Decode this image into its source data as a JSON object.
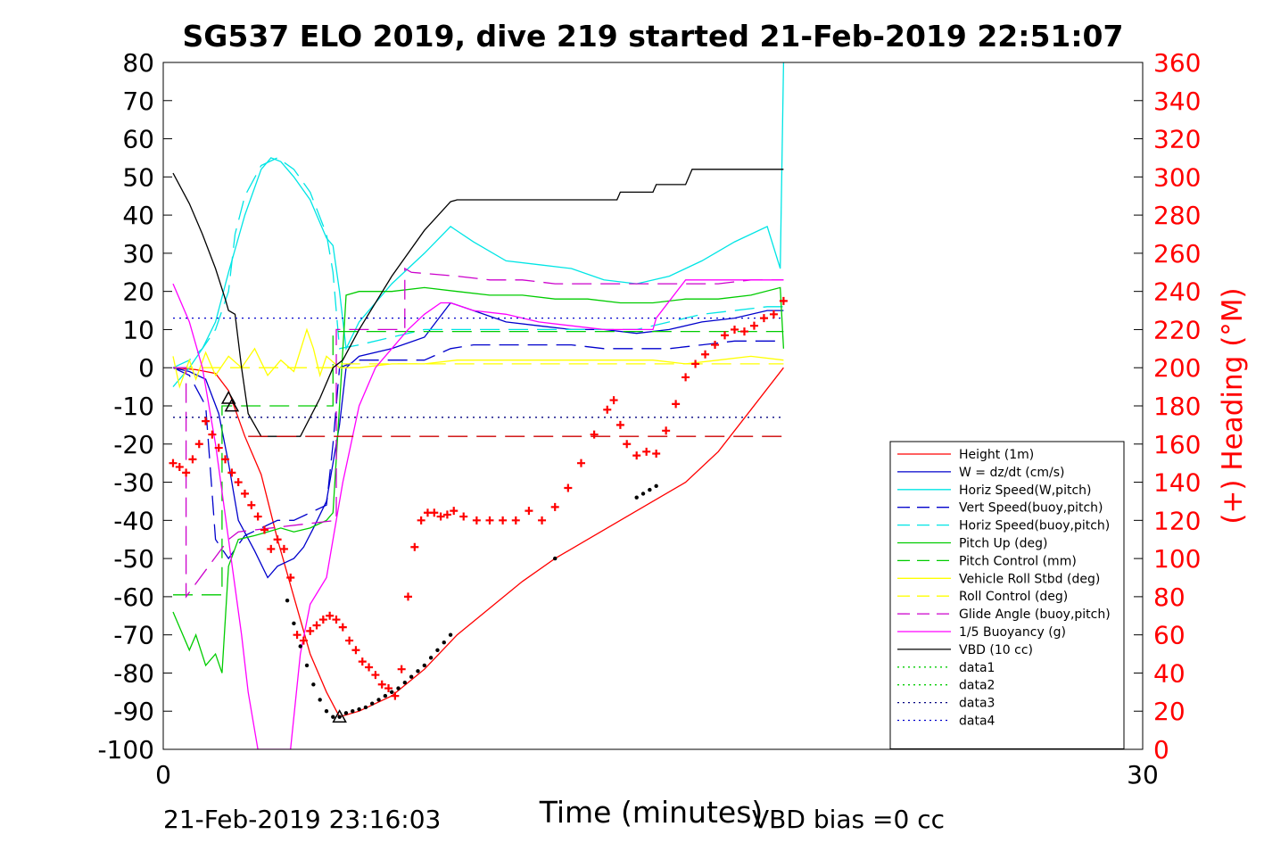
{
  "chart_data": {
    "type": "line",
    "title": "SG537 ELO 2019, dive 219 started 21-Feb-2019 22:51:07",
    "xlabel": "Time (minutes)",
    "ylabel": "",
    "y2label": "(+) Heading (°M)",
    "footer_left": "21-Feb-2019 23:16:03",
    "footer_right": "VBD bias =0 cc",
    "xlim": [
      0,
      30
    ],
    "ylim": [
      -100,
      80
    ],
    "y2lim": [
      0,
      360
    ],
    "xticks": [
      0,
      30
    ],
    "yticks": [
      -100,
      -90,
      -80,
      -70,
      -60,
      -50,
      -40,
      -30,
      -20,
      -10,
      0,
      10,
      20,
      30,
      40,
      50,
      60,
      70,
      80
    ],
    "y2ticks": [
      0,
      20,
      40,
      60,
      80,
      100,
      120,
      140,
      160,
      180,
      200,
      220,
      240,
      260,
      280,
      300,
      320,
      340,
      360
    ],
    "grid": false,
    "legend_position": "bottom-right",
    "apogee_markers": [
      [
        2.0,
        -8.0
      ],
      [
        2.1,
        -10.0
      ],
      [
        5.4,
        -91.5
      ]
    ],
    "series": [
      {
        "name": "Height (1m)",
        "color": "#ff0000",
        "style": "solid",
        "x": [
          0.3,
          1.0,
          1.6,
          2.0,
          2.5,
          3.0,
          3.5,
          4.0,
          4.5,
          5.0,
          5.4,
          6.0,
          7.0,
          8.0,
          9.0,
          10.0,
          11.0,
          12.0,
          13.0,
          14.0,
          15.0,
          16.0,
          17.0,
          18.0,
          19.0
        ],
        "y": [
          0,
          -0.5,
          -1.5,
          -6.0,
          -18.0,
          -28.0,
          -45.0,
          -60.0,
          -75.0,
          -85.0,
          -91.5,
          -90.0,
          -86.0,
          -79.0,
          -70.0,
          -63.0,
          -56.0,
          -50.0,
          -45.0,
          -40.0,
          -35.0,
          -30.0,
          -22.0,
          -11.0,
          0
        ]
      },
      {
        "name": "W = dz/dt (cm/s)",
        "color": "#0000cc",
        "style": "solid",
        "x": [
          0.3,
          0.8,
          1.3,
          1.7,
          2.0,
          2.3,
          2.8,
          3.2,
          3.5,
          4.0,
          4.3,
          4.6,
          5.0,
          5.2,
          5.4,
          5.6,
          6.0,
          7.0,
          8.0,
          8.8,
          9.5,
          10.5,
          11.5,
          12.5,
          13.5,
          14.5,
          15.5,
          16.5,
          17.5,
          18.5,
          19.0
        ],
        "y": [
          0,
          -1.0,
          -3.0,
          -12.0,
          -25.0,
          -40.0,
          -48.0,
          -55.0,
          -52.0,
          -50.0,
          -47.0,
          -42.0,
          -35.0,
          -25.0,
          -15.0,
          0,
          3,
          5,
          8,
          17,
          15,
          12,
          11,
          10,
          10,
          9,
          10,
          12,
          13,
          15,
          15
        ]
      },
      {
        "name": "Horiz Speed(W,pitch)",
        "color": "#00e5e5",
        "style": "solid",
        "x": [
          0.3,
          0.8,
          1.2,
          1.6,
          2.0,
          2.5,
          3.0,
          3.3,
          3.6,
          4.0,
          4.5,
          5.0,
          5.2,
          5.4,
          5.6,
          6.0,
          7.0,
          8.0,
          8.8,
          9.5,
          10.5,
          11.5,
          12.5,
          13.5,
          14.5,
          15.5,
          16.5,
          17.5,
          18.5,
          18.9,
          19.0
        ],
        "y": [
          -5,
          0,
          5,
          12,
          25,
          40,
          52,
          55,
          54,
          50,
          44,
          34,
          32,
          20,
          5,
          12,
          22,
          30,
          37,
          33,
          28,
          27,
          26,
          23,
          22,
          24,
          28,
          33,
          37,
          26,
          80
        ]
      },
      {
        "name": "Vert Speed(buoy,pitch)",
        "color": "#0000cc",
        "style": "dashed",
        "x": [
          0.3,
          0.8,
          1.3,
          1.6,
          2.0,
          2.5,
          3.0,
          3.5,
          4.0,
          4.5,
          5.0,
          5.2,
          5.4,
          6.0,
          7.0,
          8.0,
          8.8,
          9.5,
          10.5,
          11.5,
          12.5,
          13.5,
          14.5,
          15.5,
          16.5,
          17.5,
          18.5,
          19.0
        ],
        "y": [
          0,
          -2,
          -10,
          -45,
          -50,
          -44,
          -42,
          -40,
          -40,
          -38,
          -36,
          -20,
          0,
          2,
          2,
          2,
          5,
          6,
          6,
          6,
          6,
          5,
          5,
          5,
          6,
          7,
          7,
          7
        ]
      },
      {
        "name": "Horiz Speed(buoy,pitch)",
        "color": "#00e5e5",
        "style": "dashed",
        "x": [
          0.3,
          0.8,
          1.2,
          1.6,
          2.0,
          2.2,
          2.5,
          3.0,
          3.5,
          4.0,
          4.5,
          5.0,
          5.2,
          5.4,
          6.0,
          7.0,
          8.0,
          8.8,
          9.5,
          10.5,
          11.5,
          12.5,
          13.5,
          14.5,
          15.5,
          16.5,
          17.5,
          18.5,
          19.0
        ],
        "y": [
          0,
          2,
          5,
          10,
          20,
          35,
          45,
          53,
          55,
          52,
          46,
          35,
          25,
          5,
          6,
          8,
          10,
          10,
          10,
          10,
          10,
          10,
          10,
          10,
          12,
          14,
          15,
          16,
          16
        ]
      },
      {
        "name": "Pitch Up (deg)",
        "color": "#00cc00",
        "style": "solid",
        "x": [
          0.3,
          0.5,
          0.8,
          1.0,
          1.3,
          1.6,
          1.8,
          2.0,
          2.3,
          2.8,
          3.2,
          3.6,
          4.0,
          4.5,
          5.0,
          5.2,
          5.4,
          5.6,
          6.0,
          7.0,
          8.0,
          9.0,
          10.0,
          11.0,
          12.0,
          13.0,
          14.0,
          15.0,
          16.0,
          17.0,
          18.0,
          18.9,
          19.0
        ],
        "y": [
          -64,
          -68,
          -74,
          -70,
          -78,
          -75,
          -80,
          -52,
          -45,
          -44,
          -43,
          -42,
          -43,
          -42,
          -40,
          -38,
          -10,
          19,
          20,
          20,
          21,
          20,
          19,
          19,
          18,
          18,
          17,
          17,
          18,
          18,
          19,
          21,
          5
        ]
      },
      {
        "name": "Pitch Control (mm)",
        "color": "#00cc00",
        "style": "dashed",
        "x": [
          0.3,
          1.8,
          1.8,
          5.2,
          5.2,
          19.0
        ],
        "y": [
          -59.5,
          -59.5,
          -10,
          -10,
          9.5,
          9.5
        ]
      },
      {
        "name": "Vehicle Roll Stbd (deg)",
        "color": "#ffff00",
        "style": "solid",
        "x": [
          0.3,
          0.5,
          0.8,
          1.0,
          1.3,
          1.6,
          2.0,
          2.4,
          2.8,
          3.2,
          3.6,
          4.0,
          4.4,
          4.6,
          4.8,
          5.0,
          5.4,
          6.0,
          7.0,
          8.0,
          9.0,
          10.0,
          11.0,
          12.0,
          13.0,
          14.0,
          15.0,
          16.0,
          17.0,
          18.0,
          19.0
        ],
        "y": [
          3,
          -5,
          2,
          -3,
          4,
          -2,
          3,
          0,
          5,
          -2,
          2,
          -1,
          10,
          5,
          -2,
          3,
          0,
          0,
          1,
          1,
          2,
          2,
          2,
          2,
          2,
          2,
          2,
          1,
          2,
          3,
          2
        ]
      },
      {
        "name": "Roll Control (deg)",
        "color": "#ffff00",
        "style": "dashed",
        "x": [
          0.3,
          5.2,
          5.2,
          19.0
        ],
        "y": [
          0,
          0,
          1,
          1
        ]
      },
      {
        "name": "Glide Angle (buoy,pitch)",
        "color": "#cc00cc",
        "style": "dashed",
        "x": [
          0.3,
          0.7,
          0.7,
          2.0,
          2.3,
          5.3,
          5.3,
          7.4,
          7.4,
          7.6,
          9.0,
          10.0,
          11.0,
          12.0,
          13.0,
          14.0,
          15.0,
          16.0,
          17.0,
          18.0,
          19.0
        ],
        "y": [
          0,
          0,
          -60,
          -45,
          -43,
          -40,
          10,
          10,
          26,
          25,
          24,
          23,
          23,
          22,
          22,
          22,
          22,
          22,
          22,
          23,
          23
        ]
      },
      {
        "name": "1/5 Buoyancy (g)",
        "color": "#ff00ff",
        "style": "solid",
        "x": [
          0.3,
          0.8,
          1.2,
          1.6,
          2.0,
          2.4,
          2.6,
          2.9,
          3.9,
          4.2,
          4.5,
          5.0,
          5.5,
          6.0,
          6.5,
          7.0,
          7.5,
          8.0,
          8.5,
          8.8,
          9.5,
          10.5,
          11.5,
          12.5,
          13.5,
          14.5,
          15.0,
          15.1,
          16.0,
          17.0,
          18.0,
          19.0
        ],
        "y": [
          22,
          12,
          0,
          -20,
          -45,
          -70,
          -85,
          -100,
          -100,
          -75,
          -62,
          -55,
          -30,
          -10,
          0,
          5,
          10,
          14,
          17,
          17,
          15,
          14,
          12,
          11,
          10,
          10,
          10,
          13,
          23,
          23,
          23,
          23
        ]
      },
      {
        "name": "VBD (10 cc)",
        "color": "#000000",
        "style": "solid",
        "x": [
          0.3,
          0.8,
          1.2,
          1.6,
          1.9,
          2.0,
          2.2,
          2.4,
          2.6,
          3.0,
          3.6,
          4.2,
          4.8,
          5.2,
          5.5,
          6.0,
          7.0,
          8.0,
          8.8,
          9.0,
          13.9,
          14.0,
          15.0,
          15.1,
          16.0,
          16.2,
          19.0
        ],
        "y": [
          51,
          43,
          35,
          26,
          18,
          15,
          14,
          0,
          -12,
          -18,
          -18,
          -18,
          -8,
          0,
          2,
          10,
          24,
          36,
          43.5,
          44,
          44,
          46,
          46,
          48,
          48,
          52,
          52
        ]
      },
      {
        "name": "data1",
        "color": "#00cc00",
        "style": "dotted",
        "x": [],
        "y": []
      },
      {
        "name": "data2",
        "color": "#00cc00",
        "style": "dotted",
        "x": [],
        "y": []
      },
      {
        "name": "data3",
        "color": "#000080",
        "style": "dotted",
        "x": [
          0.3,
          19.0
        ],
        "y": [
          -13,
          -13
        ]
      },
      {
        "name": "data4",
        "color": "#0000cc",
        "style": "dotted",
        "x": [
          0.3,
          19.0
        ],
        "y": [
          13,
          13
        ]
      }
    ],
    "extra_lines": [
      {
        "color": "#cc0000",
        "style": "dashed",
        "x": [
          2.6,
          19.0
        ],
        "y": [
          -18,
          -18
        ]
      }
    ],
    "heading_points": {
      "color": "#ff0000",
      "axis": "right",
      "x": [
        0.3,
        0.5,
        0.7,
        0.9,
        1.1,
        1.3,
        1.5,
        1.7,
        1.9,
        2.1,
        2.3,
        2.5,
        2.7,
        2.9,
        3.1,
        3.3,
        3.5,
        3.7,
        3.9,
        4.1,
        4.3,
        4.5,
        4.7,
        4.9,
        5.1,
        5.3,
        5.5,
        5.7,
        5.9,
        6.1,
        6.3,
        6.5,
        6.7,
        6.9,
        7.1,
        7.3,
        7.5,
        7.7,
        7.9,
        8.1,
        8.3,
        8.5,
        8.7,
        8.9,
        9.2,
        9.6,
        10.0,
        10.4,
        10.8,
        11.2,
        11.6,
        12.0,
        12.4,
        12.8,
        13.2,
        13.6,
        13.8,
        14.0,
        14.2,
        14.5,
        14.8,
        15.1,
        15.4,
        15.7,
        16.0,
        16.3,
        16.6,
        16.9,
        17.2,
        17.5,
        17.8,
        18.1,
        18.4,
        18.7,
        19.0
      ],
      "y": [
        150,
        148,
        145,
        152,
        160,
        172,
        165,
        158,
        152,
        145,
        140,
        134,
        128,
        122,
        115,
        105,
        110,
        105,
        90,
        60,
        57,
        62,
        65,
        68,
        70,
        68,
        64,
        57,
        52,
        46,
        43,
        39,
        34,
        32,
        28,
        42,
        80,
        106,
        120,
        124,
        124,
        122,
        123,
        125,
        122,
        120,
        120,
        120,
        120,
        125,
        120,
        127,
        137,
        150,
        165,
        178,
        183,
        170,
        160,
        154,
        156,
        155,
        167,
        181,
        195,
        202,
        207,
        212,
        217,
        220,
        219,
        222,
        226,
        228,
        235
      ]
    },
    "depth_dots": {
      "color": "#000000",
      "x": [
        3.8,
        4.0,
        4.2,
        4.4,
        4.6,
        4.8,
        5.0,
        5.2,
        5.4,
        5.6,
        5.8,
        6.0,
        6.2,
        6.4,
        6.6,
        6.8,
        7.0,
        7.2,
        7.4,
        7.6,
        7.8,
        8.0,
        8.2,
        8.4,
        8.6,
        8.8,
        12.0,
        14.5,
        14.7,
        14.9,
        15.1
      ],
      "y": [
        -61,
        -67,
        -73,
        -78,
        -83,
        -87,
        -90,
        -91.5,
        -91.5,
        -90.5,
        -90,
        -89.5,
        -89,
        -88,
        -87,
        -86,
        -85,
        -84,
        -82.5,
        -81,
        -79.5,
        -78,
        -76,
        -74,
        -72,
        -70,
        -50,
        -34,
        -33,
        -32,
        -31
      ]
    }
  }
}
